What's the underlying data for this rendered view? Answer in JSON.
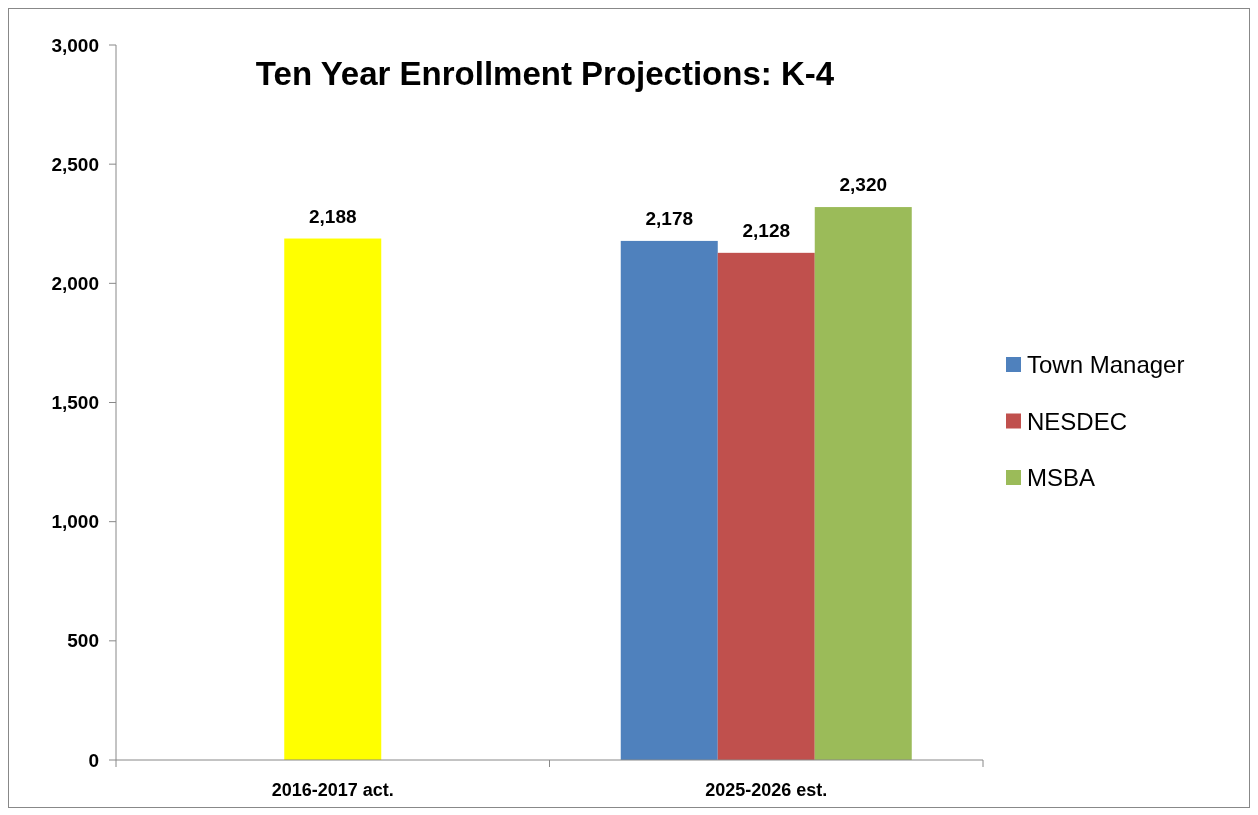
{
  "chart_data": {
    "type": "bar",
    "title": "Ten Year Enrollment Projections:  K-4",
    "categories": [
      "2016-2017 act.",
      "2025-2026 est."
    ],
    "series": [
      {
        "color": "#ffff00",
        "values": [
          2188,
          null
        ],
        "value_labels": [
          "2,188",
          null
        ]
      },
      {
        "name": "Town Manager",
        "color": "#4f81bd",
        "values": [
          null,
          2178
        ],
        "value_labels": [
          null,
          "2,178"
        ]
      },
      {
        "name": "NESDEC",
        "color": "#c0504d",
        "values": [
          null,
          2128
        ],
        "value_labels": [
          null,
          "2,128"
        ]
      },
      {
        "name": "MSBA",
        "color": "#9bbb59",
        "values": [
          null,
          2320
        ],
        "value_labels": [
          null,
          "2,320"
        ]
      }
    ],
    "ylim": [
      0,
      3000
    ],
    "yticks": [
      0,
      500,
      {
        "value": 1000,
        "label": "1,000"
      },
      {
        "value": 1500,
        "label": "1,500"
      },
      {
        "value": 2000,
        "label": "2,000"
      },
      {
        "value": 2500,
        "label": "2,500"
      },
      {
        "value": 3000,
        "label": "3,000"
      }
    ],
    "grid": false,
    "legend": "right"
  }
}
